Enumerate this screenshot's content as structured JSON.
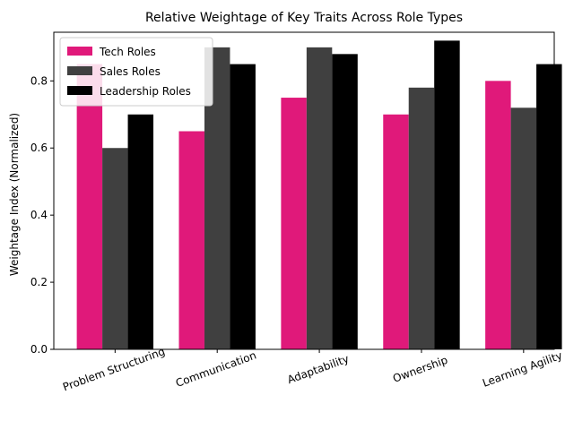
{
  "chart_data": {
    "type": "bar",
    "title": "Relative Weightage of Key Traits Across Role Types",
    "xlabel": "",
    "ylabel": "Weightage Index (Normalized)",
    "categories": [
      "Problem Structuring",
      "Communication",
      "Adaptability",
      "Ownership",
      "Learning Agility"
    ],
    "series": [
      {
        "name": "Tech Roles",
        "color": "#e0197a",
        "values": [
          0.85,
          0.65,
          0.75,
          0.7,
          0.8
        ]
      },
      {
        "name": "Sales Roles",
        "color": "#404040",
        "values": [
          0.6,
          0.9,
          0.9,
          0.78,
          0.72
        ]
      },
      {
        "name": "Leadership Roles",
        "color": "#000000",
        "values": [
          0.7,
          0.85,
          0.88,
          0.92,
          0.85
        ]
      }
    ],
    "ylim": [
      0,
      0.945
    ],
    "yticks": [
      0.0,
      0.2,
      0.4,
      0.6,
      0.8
    ],
    "ytick_labels": [
      "0.0",
      "0.2",
      "0.4",
      "0.6",
      "0.8"
    ],
    "grid": false,
    "legend_position": "top-left"
  }
}
